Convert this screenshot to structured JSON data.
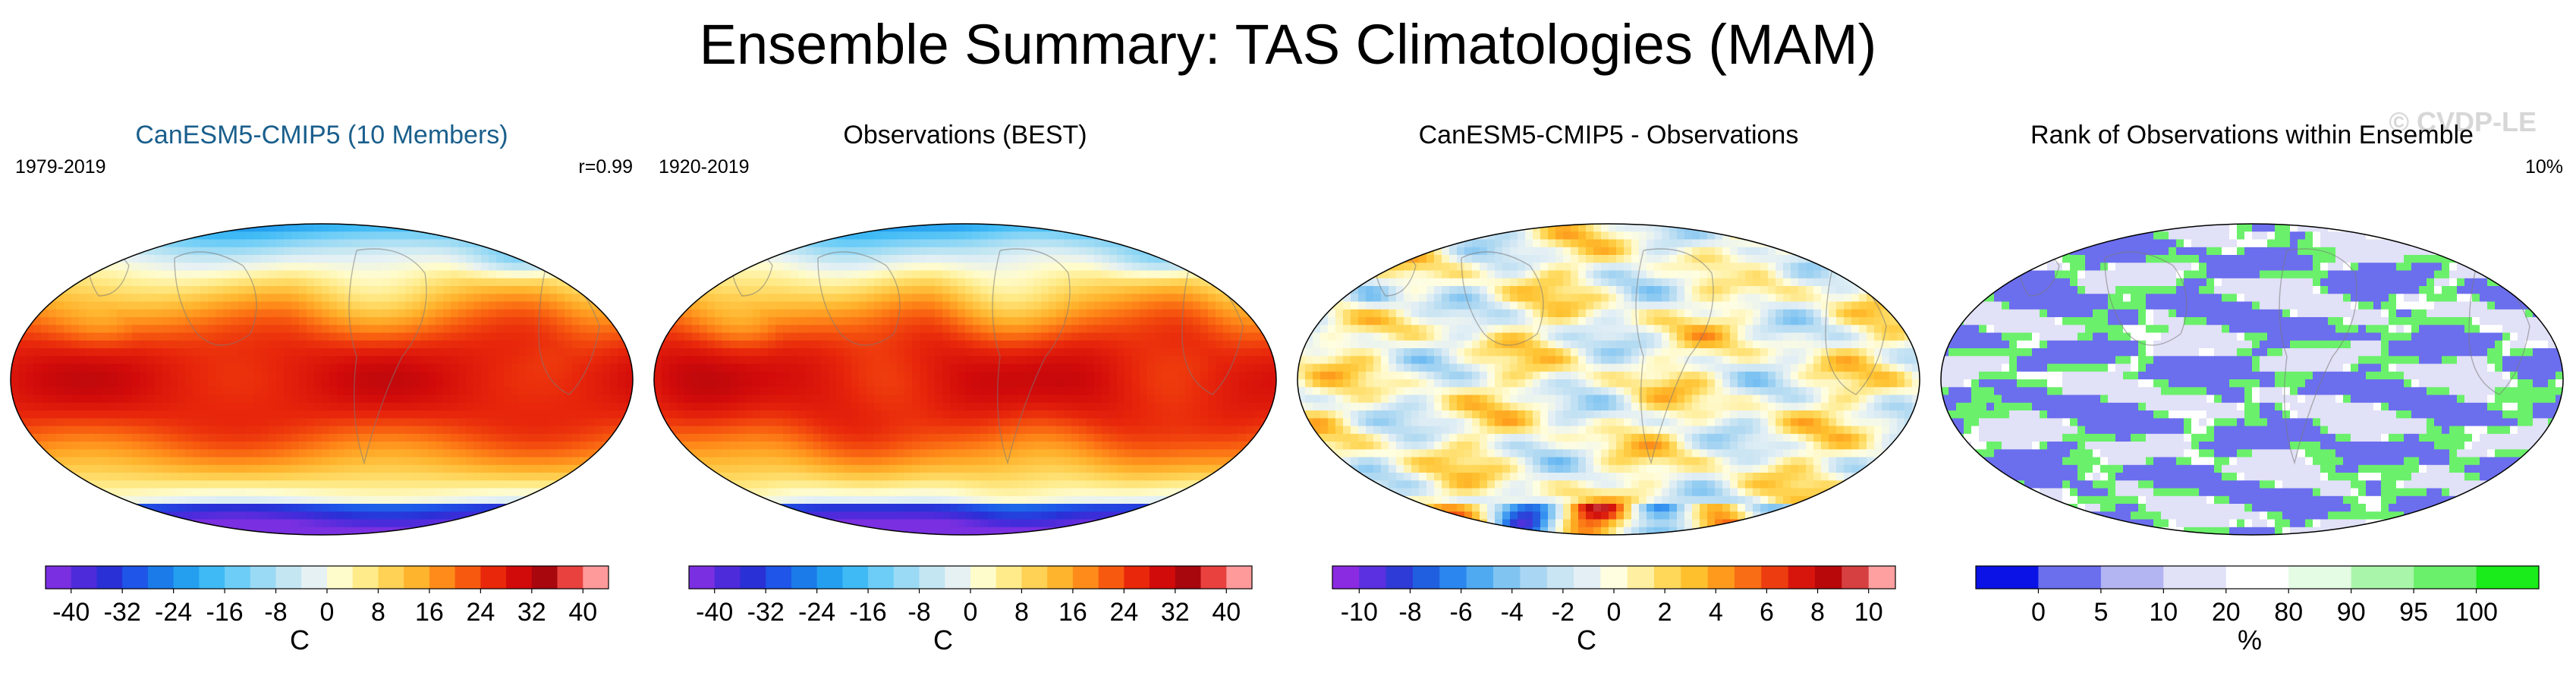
{
  "figure": {
    "title": "Ensemble Summary: TAS Climatologies (MAM)",
    "watermark": "© CVDP-LE"
  },
  "chart_data": [
    {
      "type": "heatmap",
      "title": "CanESM5-CMIP5 (10 Members)",
      "title_color": "#1a5f8c",
      "left_text": "1979-2019",
      "right_text": "r=0.99",
      "projection": "Robinson (Pacific-centered)",
      "colorbar": {
        "unit": "C",
        "levels": [
          -40,
          -36,
          -32,
          -28,
          -24,
          -20,
          -16,
          -12,
          -8,
          -4,
          0,
          4,
          8,
          12,
          16,
          20,
          24,
          28,
          32,
          36,
          40
        ],
        "tick_labels": [
          "-40",
          "-32",
          "-24",
          "-16",
          "-8",
          "0",
          "8",
          "16",
          "24",
          "32",
          "40"
        ],
        "colors": [
          "#7a2fe0",
          "#4d2bdb",
          "#2930d6",
          "#1f55e8",
          "#1b7be8",
          "#249ff0",
          "#3fbaf5",
          "#6dcdf7",
          "#9bdaf4",
          "#c3e6f2",
          "#e6f1f4",
          "#fffccc",
          "#ffeb8a",
          "#ffd255",
          "#ffb42e",
          "#ff8c1a",
          "#f75a0f",
          "#e8270b",
          "#d10a0a",
          "#a8070d",
          "#e8413e",
          "#ff9a9a"
        ]
      }
    },
    {
      "type": "heatmap",
      "title": "Observations (BEST)",
      "title_color": "#000000",
      "left_text": "1920-2019",
      "right_text": "",
      "projection": "Robinson (Pacific-centered)",
      "colorbar": {
        "unit": "C",
        "levels": [
          -40,
          -36,
          -32,
          -28,
          -24,
          -20,
          -16,
          -12,
          -8,
          -4,
          0,
          4,
          8,
          12,
          16,
          20,
          24,
          28,
          32,
          36,
          40
        ],
        "tick_labels": [
          "-40",
          "-32",
          "-24",
          "-16",
          "-8",
          "0",
          "8",
          "16",
          "24",
          "32",
          "40"
        ],
        "colors": [
          "#7a2fe0",
          "#4d2bdb",
          "#2930d6",
          "#1f55e8",
          "#1b7be8",
          "#249ff0",
          "#3fbaf5",
          "#6dcdf7",
          "#9bdaf4",
          "#c3e6f2",
          "#e6f1f4",
          "#fffccc",
          "#ffeb8a",
          "#ffd255",
          "#ffb42e",
          "#ff8c1a",
          "#f75a0f",
          "#e8270b",
          "#d10a0a",
          "#a8070d",
          "#e8413e",
          "#ff9a9a"
        ]
      }
    },
    {
      "type": "heatmap",
      "title": "CanESM5-CMIP5 - Observations",
      "title_color": "#000000",
      "left_text": "",
      "right_text": "",
      "projection": "Robinson (Pacific-centered)",
      "colorbar": {
        "unit": "C",
        "levels": [
          -10,
          -9,
          -8,
          -7,
          -6,
          -5,
          -4,
          -3,
          -2,
          -1,
          0,
          1,
          2,
          3,
          4,
          5,
          6,
          7,
          8,
          9,
          10
        ],
        "tick_labels": [
          "-10",
          "-8",
          "-6",
          "-4",
          "-2",
          "0",
          "2",
          "4",
          "6",
          "8",
          "10"
        ],
        "colors": [
          "#8a2be2",
          "#5a30e0",
          "#2f3bd6",
          "#2060e0",
          "#2b87ef",
          "#4faaf2",
          "#80c4f2",
          "#a9d6f2",
          "#c9e4f3",
          "#e3eff5",
          "#fffee0",
          "#ffefa0",
          "#ffd85a",
          "#ffc02e",
          "#ff9a1c",
          "#f96d14",
          "#ed3d10",
          "#d8150d",
          "#b8080a",
          "#d64040",
          "#ffa0a0"
        ]
      }
    },
    {
      "type": "heatmap",
      "title": "Rank of Observations within Ensemble",
      "title_color": "#000000",
      "left_text": "",
      "right_text": "10%",
      "projection": "Robinson (Pacific-centered)",
      "colorbar": {
        "unit": "%",
        "levels": [
          0,
          5,
          10,
          20,
          80,
          90,
          95,
          100
        ],
        "tick_labels": [
          "0",
          "5",
          "10",
          "20",
          "80",
          "90",
          "95",
          "100"
        ],
        "colors": [
          "#0a12e6",
          "#6b6eed",
          "#b3b4f2",
          "#e1e1f7",
          "#ffffff",
          "#e4fbe4",
          "#a9f5a9",
          "#6bf06b",
          "#1aeb1a"
        ]
      }
    }
  ]
}
